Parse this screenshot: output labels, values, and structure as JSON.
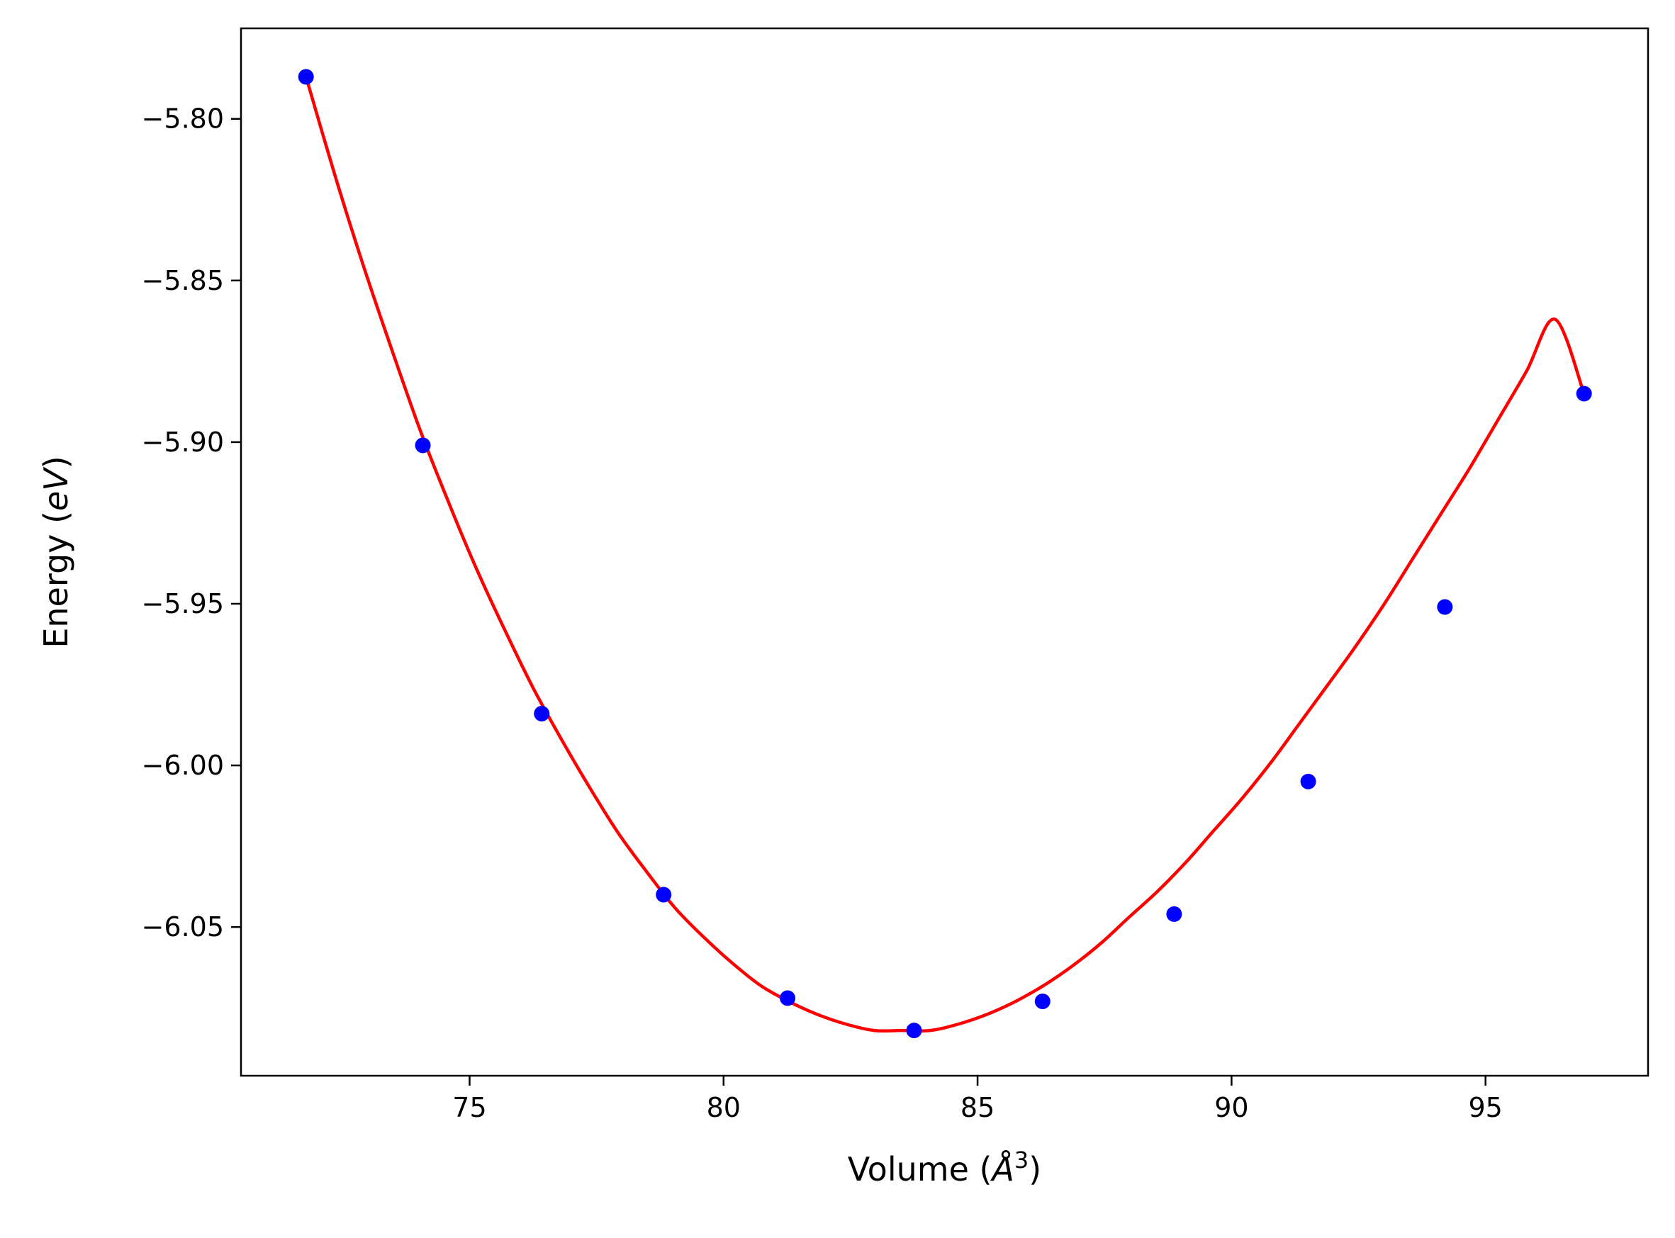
{
  "chart_data": {
    "type": "scatter",
    "title": "",
    "xlabel": "Volume (",
    "xlabel_math": "Å",
    "xlabel_sup": "3",
    "xlabel_end": ")",
    "ylabel": "Energy (",
    "ylabel_math": "eV",
    "ylabel_end": ")",
    "xlim": [
      70.5,
      98.2
    ],
    "ylim": [
      -6.096,
      -5.772
    ],
    "x_ticks": [
      75,
      80,
      85,
      90,
      95
    ],
    "x_tick_labels": [
      "75",
      "80",
      "85",
      "90",
      "95"
    ],
    "y_ticks": [
      -5.8,
      -5.85,
      -5.9,
      -5.95,
      -6.0,
      -6.05
    ],
    "y_tick_labels": [
      "−5.80",
      "−5.85",
      "−5.90",
      "−5.95",
      "−6.00",
      "−6.05"
    ],
    "grid": false,
    "legend": "none",
    "series": [
      {
        "kind": "points",
        "color": "#0000ff",
        "x": [
          71.78,
          74.08,
          76.42,
          78.82,
          81.26,
          83.75,
          86.28,
          88.87,
          91.51,
          94.2,
          96.94
        ],
        "y": [
          -5.787,
          -5.901,
          -5.984,
          -6.04,
          -6.072,
          -6.082,
          -6.073,
          -6.046,
          -6.005,
          -5.951,
          -5.885
        ]
      },
      {
        "kind": "fit-curve",
        "color": "#ff0000",
        "x": [
          71.78,
          72.34,
          72.9,
          73.46,
          74.02,
          74.57,
          75.13,
          75.69,
          76.25,
          76.81,
          77.37,
          77.93,
          78.49,
          79.04,
          79.6,
          80.16,
          80.72,
          81.28,
          81.84,
          82.4,
          82.96,
          83.51,
          84.07,
          84.63,
          85.19,
          85.75,
          86.31,
          86.87,
          87.43,
          87.98,
          88.54,
          89.1,
          89.66,
          90.22,
          90.78,
          91.34,
          91.9,
          92.45,
          93.01,
          93.57,
          94.13,
          94.69,
          95.25,
          95.81,
          96.37,
          96.94
        ],
        "y": [
          -5.787,
          -5.817,
          -5.845,
          -5.871,
          -5.896,
          -5.918,
          -5.939,
          -5.958,
          -5.976,
          -5.992,
          -6.007,
          -6.021,
          -6.033,
          -6.044,
          -6.053,
          -6.061,
          -6.068,
          -6.073,
          -6.077,
          -6.08,
          -6.082,
          -6.082,
          -6.082,
          -6.08,
          -6.077,
          -6.073,
          -6.068,
          -6.062,
          -6.055,
          -6.047,
          -6.039,
          -6.03,
          -6.02,
          -6.01,
          -5.999,
          -5.987,
          -5.975,
          -5.963,
          -5.95,
          -5.936,
          -5.922,
          -5.908,
          -5.893,
          -5.878,
          -5.862,
          -5.885
        ]
      }
    ]
  }
}
